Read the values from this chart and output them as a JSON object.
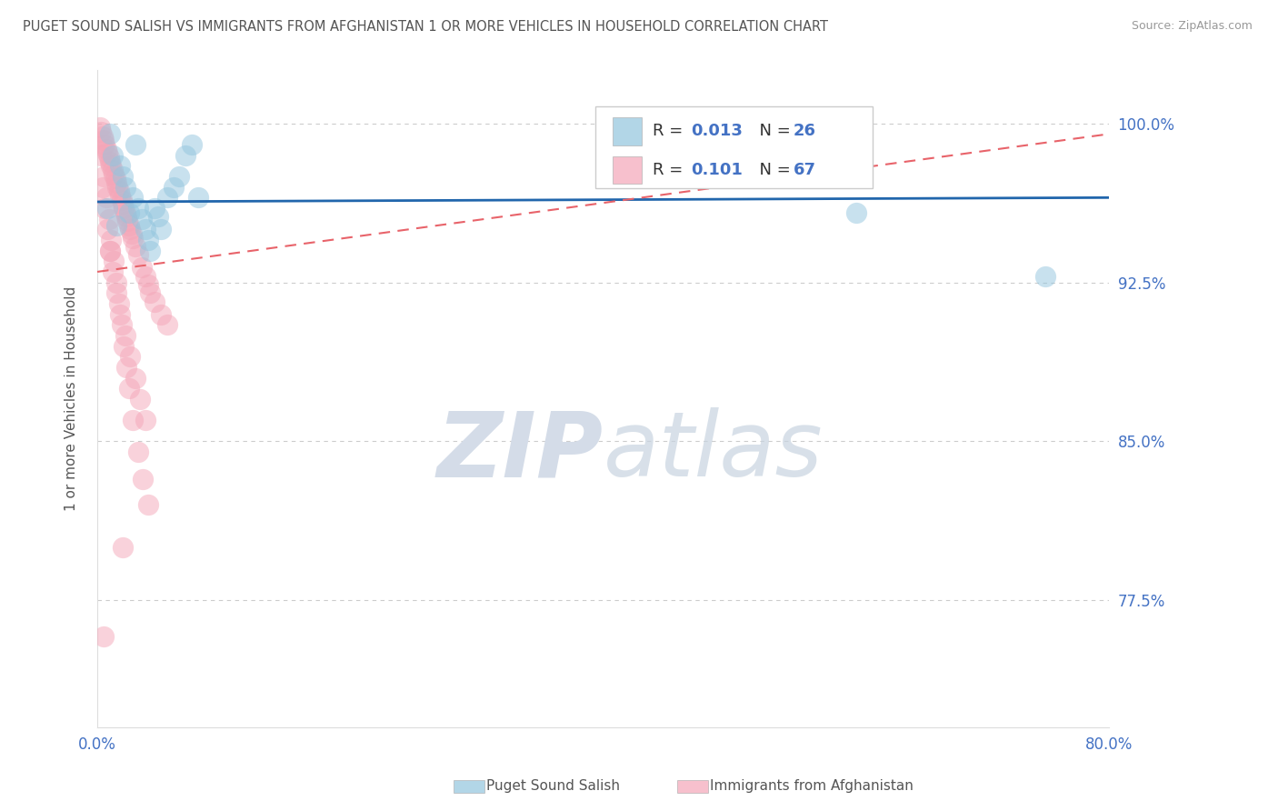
{
  "title": "PUGET SOUND SALISH VS IMMIGRANTS FROM AFGHANISTAN 1 OR MORE VEHICLES IN HOUSEHOLD CORRELATION CHART",
  "source": "Source: ZipAtlas.com",
  "ylabel": "1 or more Vehicles in Household",
  "ytick_labels": [
    "77.5%",
    "85.0%",
    "92.5%",
    "100.0%"
  ],
  "ytick_values": [
    0.775,
    0.85,
    0.925,
    1.0
  ],
  "xlim": [
    0.0,
    0.8
  ],
  "ylim": [
    0.715,
    1.025
  ],
  "legend_blue_label": "Puget Sound Salish",
  "legend_pink_label": "Immigrants from Afghanistan",
  "blue_color": "#92c5de",
  "pink_color": "#f4a6b8",
  "trendline_blue_color": "#2166ac",
  "trendline_pink_color": "#e8636a",
  "watermark_color": "#d4dce8",
  "title_color": "#555555",
  "source_color": "#999999",
  "axis_label_color": "#555555",
  "tick_label_color": "#4472c4",
  "grid_color": "#cccccc",
  "blue_x": [
    0.01,
    0.012,
    0.018,
    0.02,
    0.022,
    0.028,
    0.03,
    0.032,
    0.035,
    0.038,
    0.04,
    0.042,
    0.045,
    0.048,
    0.05,
    0.055,
    0.06,
    0.065,
    0.025,
    0.015,
    0.07,
    0.075,
    0.08,
    0.008,
    0.6,
    0.75
  ],
  "blue_y": [
    0.995,
    0.985,
    0.98,
    0.975,
    0.97,
    0.965,
    0.99,
    0.96,
    0.955,
    0.95,
    0.945,
    0.94,
    0.96,
    0.956,
    0.95,
    0.965,
    0.97,
    0.975,
    0.958,
    0.952,
    0.985,
    0.99,
    0.965,
    0.96,
    0.958,
    0.928
  ],
  "pink_x": [
    0.002,
    0.003,
    0.004,
    0.005,
    0.006,
    0.007,
    0.008,
    0.009,
    0.01,
    0.011,
    0.012,
    0.013,
    0.014,
    0.015,
    0.016,
    0.017,
    0.018,
    0.019,
    0.02,
    0.021,
    0.022,
    0.023,
    0.024,
    0.025,
    0.026,
    0.027,
    0.028,
    0.03,
    0.032,
    0.035,
    0.038,
    0.04,
    0.042,
    0.045,
    0.05,
    0.055,
    0.003,
    0.005,
    0.007,
    0.009,
    0.011,
    0.013,
    0.015,
    0.017,
    0.019,
    0.021,
    0.023,
    0.025,
    0.028,
    0.032,
    0.036,
    0.04,
    0.004,
    0.006,
    0.008,
    0.01,
    0.012,
    0.015,
    0.018,
    0.022,
    0.026,
    0.03,
    0.034,
    0.038,
    0.005,
    0.01,
    0.02
  ],
  "pink_y": [
    0.998,
    0.996,
    0.994,
    0.992,
    0.99,
    0.988,
    0.986,
    0.984,
    0.982,
    0.98,
    0.978,
    0.976,
    0.974,
    0.972,
    0.97,
    0.968,
    0.966,
    0.964,
    0.962,
    0.96,
    0.958,
    0.956,
    0.954,
    0.952,
    0.95,
    0.948,
    0.946,
    0.942,
    0.938,
    0.932,
    0.928,
    0.924,
    0.92,
    0.916,
    0.91,
    0.905,
    0.985,
    0.975,
    0.965,
    0.955,
    0.945,
    0.935,
    0.925,
    0.915,
    0.905,
    0.895,
    0.885,
    0.875,
    0.86,
    0.845,
    0.832,
    0.82,
    0.97,
    0.96,
    0.95,
    0.94,
    0.93,
    0.92,
    0.91,
    0.9,
    0.89,
    0.88,
    0.87,
    0.86,
    0.758,
    0.94,
    0.8
  ],
  "blue_trendline_x": [
    0.0,
    0.8
  ],
  "blue_trendline_y": [
    0.963,
    0.965
  ],
  "pink_trendline_x": [
    0.0,
    0.8
  ],
  "pink_trendline_y": [
    0.93,
    0.995
  ]
}
